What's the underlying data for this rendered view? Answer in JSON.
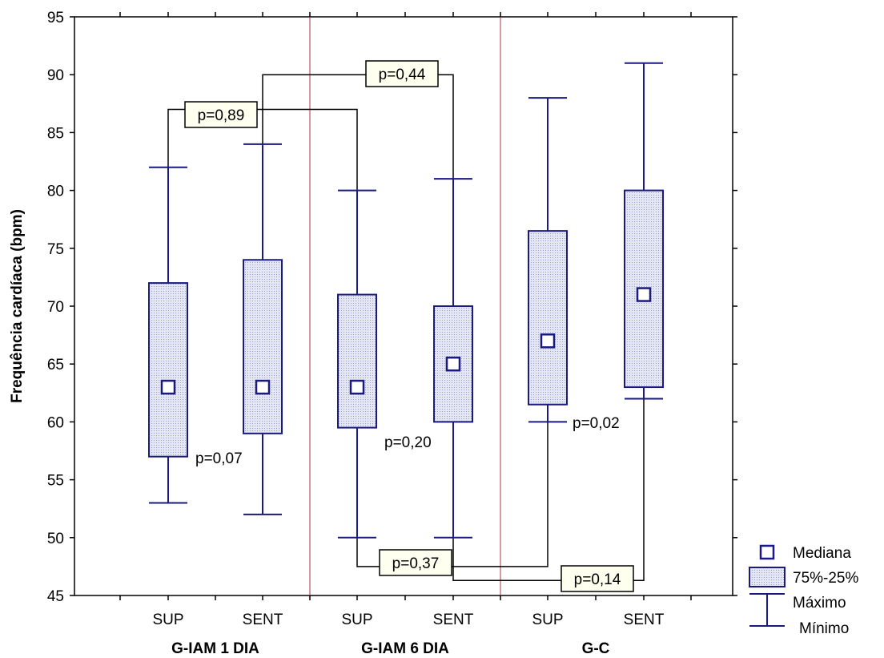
{
  "chart_data": {
    "type": "box",
    "ylabel": "Frequência cardíaca (bpm)",
    "ylim": [
      45,
      95
    ],
    "yticks": [
      45,
      50,
      55,
      60,
      65,
      70,
      75,
      80,
      85,
      90,
      95
    ],
    "groups": [
      "G-IAM 1 DIA",
      "G-IAM 6 DIA",
      "G-C"
    ],
    "categories": [
      "SUP",
      "SENT",
      "SUP",
      "SENT",
      "SUP",
      "SENT"
    ],
    "boxes": [
      {
        "group": "G-IAM 1 DIA",
        "label": "SUP",
        "median": 63,
        "q1": 57,
        "q3": 72,
        "min": 53,
        "max": 82
      },
      {
        "group": "G-IAM 1 DIA",
        "label": "SENT",
        "median": 63,
        "q1": 59,
        "q3": 74,
        "min": 52,
        "max": 84
      },
      {
        "group": "G-IAM 6 DIA",
        "label": "SUP",
        "median": 63,
        "q1": 59.5,
        "q3": 71,
        "min": 50,
        "max": 80
      },
      {
        "group": "G-IAM 6 DIA",
        "label": "SENT",
        "median": 65,
        "q1": 60,
        "q3": 70,
        "min": 50,
        "max": 81
      },
      {
        "group": "G-C",
        "label": "SUP",
        "median": 67,
        "q1": 61.5,
        "q3": 76.5,
        "min": 60,
        "max": 88
      },
      {
        "group": "G-C",
        "label": "SENT",
        "median": 71,
        "q1": 63,
        "q3": 80,
        "min": 62,
        "max": 91
      }
    ],
    "comparisons": [
      {
        "text": "p=0,89",
        "from": 0,
        "to": 2,
        "y": 87,
        "boxed": true
      },
      {
        "text": "p=0,44",
        "from": 1,
        "to": 3,
        "y": 90,
        "boxed": true
      },
      {
        "text": "p=0,37",
        "from": 2,
        "to": 4,
        "y": 47.5,
        "boxed": true
      },
      {
        "text": "p=0,14",
        "from": 3,
        "to": 5,
        "y": 46.3,
        "boxed": true
      },
      {
        "text": "p=0,07",
        "from": 0,
        "to": 1,
        "boxed": false
      },
      {
        "text": "p=0,20",
        "from": 2,
        "to": 3,
        "boxed": false
      },
      {
        "text": "p=0,02",
        "from": 4,
        "to": 5,
        "boxed": false
      }
    ],
    "legend": [
      {
        "symbol": "median",
        "label": "Mediana"
      },
      {
        "symbol": "box",
        "label": "75%-25%"
      },
      {
        "symbol": "whisker",
        "label": "Máximo"
      },
      {
        "symbol": "none",
        "label": "Mínimo"
      }
    ],
    "legend_position": "bottom-right",
    "colors": {
      "box_stroke": "#1a1a80",
      "box_fill": "#d6d9ef",
      "separator": "#b03040",
      "pbox_fill": "#fffff0"
    },
    "grid": false
  }
}
